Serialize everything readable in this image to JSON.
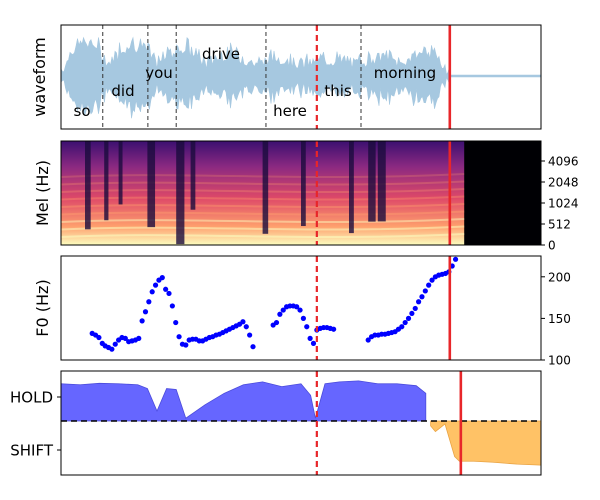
{
  "colors": {
    "waveform": "#a6c8e0",
    "f0_points": "#0000ff",
    "hold_fill": "#6666ff",
    "shift_fill": "#ffc266",
    "current_line": "#e8262a",
    "dashed_line": "#333333",
    "spec_colormap": [
      "#000004",
      "#3b0f70",
      "#8c2981",
      "#de4968",
      "#fe9f6d",
      "#fcfdbf"
    ]
  },
  "chart_data": [
    {
      "type": "area",
      "panel": "waveform",
      "ylabel": "waveform",
      "words": [
        {
          "text": "so",
          "level": "low"
        },
        {
          "text": "did",
          "level": "mid"
        },
        {
          "text": "you",
          "level": "high"
        },
        {
          "text": "drive",
          "level": "top"
        },
        {
          "text": "here",
          "level": "low"
        },
        {
          "text": "this",
          "level": "mid"
        },
        {
          "text": "morning",
          "level": "high"
        }
      ],
      "word_boundaries": [
        0.087,
        0.181,
        0.24,
        0.427,
        0.625
      ],
      "current_marker": 0.533,
      "end_marker": 0.81,
      "audio_end": 0.81
    },
    {
      "type": "heatmap",
      "panel": "mel",
      "ylabel": "Mel (Hz)",
      "yticks": [
        "0",
        "512",
        "1024",
        "2048",
        "4096"
      ],
      "current_marker": 0.533,
      "end_marker": 0.81,
      "audio_end": 0.84
    },
    {
      "type": "scatter",
      "panel": "f0",
      "ylabel": "F0 (Hz)",
      "ylim": [
        100,
        225
      ],
      "yticks": [
        100,
        150,
        200
      ],
      "segments": [
        {
          "x": [
            0.065,
            0.072,
            0.079,
            0.086,
            0.092,
            0.099,
            0.106,
            0.113,
            0.12,
            0.127,
            0.134,
            0.141,
            0.148,
            0.155,
            0.162,
            0.169,
            0.176,
            0.183,
            0.19,
            0.197,
            0.204,
            0.211,
            0.218,
            0.225,
            0.232,
            0.239,
            0.246,
            0.253,
            0.26,
            0.267,
            0.274,
            0.281,
            0.288,
            0.295,
            0.302,
            0.309,
            0.316,
            0.323,
            0.33,
            0.337,
            0.344,
            0.351,
            0.358,
            0.365,
            0.372,
            0.379,
            0.386,
            0.393,
            0.4
          ],
          "y": [
            132,
            130,
            127,
            120,
            117,
            115,
            113,
            119,
            124,
            127,
            126,
            122,
            123,
            124,
            126,
            147,
            158,
            170,
            182,
            190,
            196,
            199,
            185,
            180,
            165,
            145,
            128,
            119,
            118,
            124,
            125,
            125,
            123,
            123,
            125,
            127,
            128,
            130,
            131,
            133,
            135,
            137,
            139,
            141,
            143,
            146,
            140,
            130,
            116
          ]
        },
        {
          "x": [
            0.442,
            0.449,
            0.456,
            0.463,
            0.47,
            0.477,
            0.484,
            0.491,
            0.498,
            0.505,
            0.512,
            0.519,
            0.526,
            0.533,
            0.54,
            0.547,
            0.554,
            0.561,
            0.568
          ],
          "y": [
            142,
            145,
            155,
            160,
            164,
            165,
            165,
            164,
            160,
            150,
            140,
            126,
            120,
            136,
            138,
            139,
            139,
            138,
            137
          ]
        },
        {
          "x": [
            0.64,
            0.647,
            0.654,
            0.661,
            0.668,
            0.675,
            0.682,
            0.689,
            0.696,
            0.703,
            0.71,
            0.717,
            0.724,
            0.731,
            0.738,
            0.745,
            0.752,
            0.759,
            0.766,
            0.773,
            0.78,
            0.787,
            0.794,
            0.801,
            0.808,
            0.815,
            0.822
          ],
          "y": [
            124,
            128,
            130,
            130,
            131,
            131,
            132,
            133,
            134,
            137,
            140,
            145,
            150,
            156,
            162,
            170,
            176,
            183,
            190,
            196,
            200,
            202,
            203,
            204,
            206,
            213,
            221
          ]
        }
      ],
      "current_marker": 0.533,
      "end_marker": 0.81
    },
    {
      "type": "area",
      "panel": "turn_taking",
      "yticks": [
        "HOLD",
        "SHIFT"
      ],
      "ylim": [
        -1,
        1
      ],
      "hold_series": {
        "x": [
          0.0,
          0.04,
          0.08,
          0.12,
          0.16,
          0.18,
          0.2,
          0.22,
          0.24,
          0.26,
          0.3,
          0.34,
          0.38,
          0.42,
          0.46,
          0.5,
          0.52,
          0.53,
          0.55,
          0.58,
          0.62,
          0.66,
          0.7,
          0.74,
          0.76
        ],
        "y": [
          0.82,
          0.8,
          0.83,
          0.82,
          0.8,
          0.72,
          0.25,
          0.72,
          0.7,
          0.1,
          0.38,
          0.62,
          0.8,
          0.86,
          0.76,
          0.82,
          0.58,
          0.1,
          0.82,
          0.86,
          0.88,
          0.82,
          0.82,
          0.78,
          0.62
        ]
      },
      "shift_series": {
        "x": [
          0.77,
          0.78,
          0.79,
          0.8,
          0.81,
          0.82,
          0.83,
          0.86,
          0.9,
          0.95,
          1.0
        ],
        "y": [
          -0.06,
          -0.18,
          -0.1,
          -0.02,
          -0.36,
          -0.7,
          -0.8,
          -0.8,
          -0.82,
          -0.86,
          -0.88
        ]
      },
      "threshold": 0.0,
      "current_marker": 0.533,
      "end_marker": 0.833
    }
  ]
}
